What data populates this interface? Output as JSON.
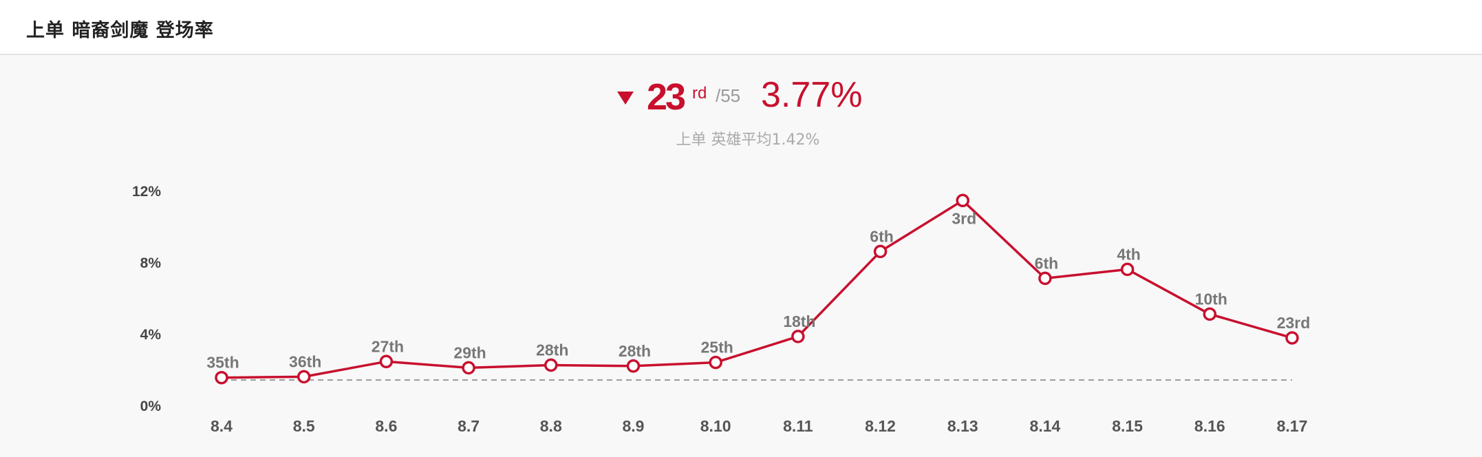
{
  "header": {
    "title": "上单 暗裔剑魔 登场率"
  },
  "summary": {
    "trend": "down",
    "trend_icon": "triangle-down-icon",
    "rank": "23",
    "rank_suffix": "rd",
    "rank_total": "/55",
    "rate": "3.77%",
    "average_text": "上单 英雄平均1.42%"
  },
  "colors": {
    "accent": "#c8102e",
    "muted": "#999999",
    "average_line": "#999999"
  },
  "chart_data": {
    "type": "line",
    "categories": [
      "8.4",
      "8.5",
      "8.6",
      "8.7",
      "8.8",
      "8.9",
      "8.10",
      "8.11",
      "8.12",
      "8.13",
      "8.14",
      "8.15",
      "8.16",
      "8.17"
    ],
    "series": [
      {
        "values": [
          1.55,
          1.6,
          2.45,
          2.1,
          2.25,
          2.2,
          2.4,
          3.85,
          8.6,
          11.45,
          7.1,
          7.6,
          5.1,
          3.77
        ],
        "rank_labels": [
          "35th",
          "36th",
          "27th",
          "29th",
          "28th",
          "28th",
          "25th",
          "18th",
          "6th",
          "3rd",
          "6th",
          "4th",
          "10th",
          "23rd"
        ],
        "color": "#c8102e"
      }
    ],
    "average": 1.42,
    "ylim": [
      0,
      12
    ],
    "yticks": [
      0,
      4,
      8,
      12
    ],
    "ytick_labels": [
      "0%",
      "4%",
      "8%",
      "12%"
    ],
    "grid": false,
    "title": "",
    "xlabel": "",
    "ylabel": ""
  }
}
